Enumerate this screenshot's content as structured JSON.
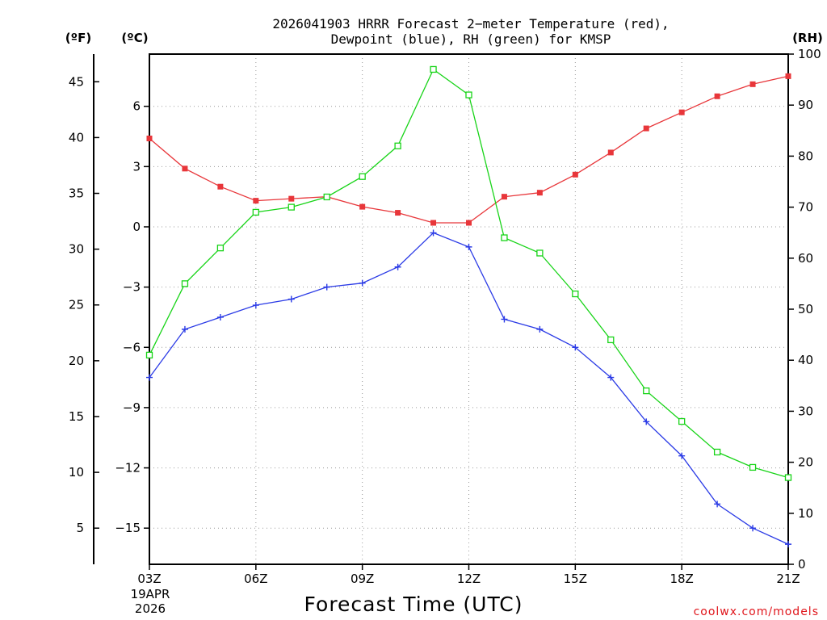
{
  "title_line1": "2026041903 HRRR Forecast 2−meter Temperature (red),",
  "title_line2": "Dewpoint (blue), RH (green) for KMSP",
  "units": {
    "fahrenheit": "(ºF)",
    "celsius": "(ºC)",
    "rh": "(RH)"
  },
  "xlabel": "Forecast Time (UTC)",
  "start_date": {
    "day": "19APR",
    "year": "2026"
  },
  "credit": "coolwx.com/models",
  "colors": {
    "temperature": "#e8363a",
    "dewpoint": "#2b3be6",
    "rh": "#18d418",
    "credit": "#e0151b"
  },
  "chart_data": {
    "type": "line",
    "x": [
      "03Z",
      "04Z",
      "05Z",
      "06Z",
      "07Z",
      "08Z",
      "09Z",
      "10Z",
      "11Z",
      "12Z",
      "13Z",
      "14Z",
      "15Z",
      "16Z",
      "17Z",
      "18Z",
      "19Z",
      "20Z",
      "21Z"
    ],
    "xticks": [
      "03Z",
      "06Z",
      "09Z",
      "12Z",
      "15Z",
      "18Z",
      "21Z"
    ],
    "xlim": [
      3,
      21
    ],
    "ylim_celsius": [
      -16.8,
      8.6
    ],
    "ylim_rh": [
      0,
      100
    ],
    "ticks_celsius": [
      "6",
      "3",
      "0",
      "−3",
      "−6",
      "−9",
      "−12",
      "−15"
    ],
    "ticks_fahrenheit": [
      "45",
      "40",
      "35",
      "30",
      "25",
      "20",
      "15",
      "10",
      "5"
    ],
    "ticks_rh": [
      "100",
      "90",
      "80",
      "70",
      "60",
      "50",
      "40",
      "30",
      "20",
      "10",
      "0"
    ],
    "grid": true,
    "series": [
      {
        "name": "Temperature",
        "axis": "celsius",
        "marker": "filled-square",
        "values": [
          4.4,
          2.9,
          2.0,
          1.3,
          1.4,
          1.5,
          1.0,
          0.7,
          0.2,
          0.2,
          1.5,
          1.7,
          2.6,
          3.7,
          4.9,
          5.7,
          6.5,
          7.1,
          7.5
        ]
      },
      {
        "name": "Dewpoint",
        "axis": "celsius",
        "marker": "plus",
        "values": [
          -7.5,
          -5.1,
          -4.5,
          -3.9,
          -3.6,
          -3.0,
          -2.8,
          -2.0,
          -0.3,
          -1.0,
          -4.6,
          -5.1,
          -6.0,
          -7.5,
          -9.7,
          -11.4,
          -13.8,
          -15.0,
          -15.8
        ]
      },
      {
        "name": "RH",
        "axis": "rh",
        "marker": "open-square",
        "values": [
          41,
          55,
          62,
          69,
          70,
          72,
          76,
          82,
          97,
          92,
          64,
          61,
          53,
          44,
          34,
          28,
          22,
          19,
          17
        ]
      }
    ]
  }
}
